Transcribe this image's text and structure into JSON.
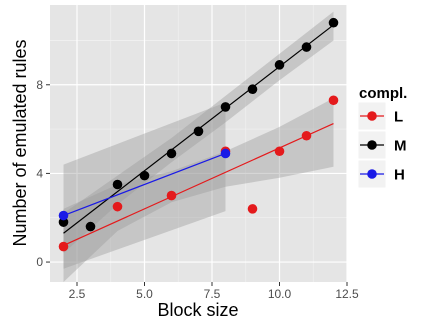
{
  "chart_data": {
    "type": "scatter",
    "xlabel": "Block size",
    "ylabel": "Number of emulated rules",
    "xlim": [
      1.5,
      12.5
    ],
    "ylim": [
      -0.9,
      11.6
    ],
    "x_ticks": [
      2.5,
      5.0,
      7.5,
      10.0,
      12.5
    ],
    "x_tick_labels": [
      "2.5",
      "5.0",
      "7.5",
      "10.0",
      "12.5"
    ],
    "y_ticks": [
      0,
      4,
      8
    ],
    "y_tick_labels": [
      "0",
      "4",
      "8"
    ],
    "grid": true,
    "legend": {
      "title": "compl.",
      "placement": "right"
    },
    "series": [
      {
        "name": "L",
        "color": "#e41a1c",
        "points": [
          {
            "x": 2,
            "y": 0.7
          },
          {
            "x": 4,
            "y": 2.5
          },
          {
            "x": 6,
            "y": 3.0
          },
          {
            "x": 8,
            "y": 5.0
          },
          {
            "x": 9,
            "y": 2.4
          },
          {
            "x": 10,
            "y": 5.0
          },
          {
            "x": 11,
            "y": 5.7
          },
          {
            "x": 12,
            "y": 7.3
          }
        ],
        "fit": {
          "x0": 2,
          "y0": 0.75,
          "x1": 12,
          "y1": 6.25
        },
        "band": [
          {
            "x": 2,
            "lo": -0.9,
            "hi": 2.4
          },
          {
            "x": 4,
            "lo": 1.4,
            "hi": 3.5
          },
          {
            "x": 6,
            "lo": 2.7,
            "hi": 4.1
          },
          {
            "x": 8,
            "lo": 3.4,
            "hi": 5.0
          },
          {
            "x": 10,
            "lo": 3.8,
            "hi": 6.1
          },
          {
            "x": 12,
            "lo": 4.3,
            "hi": 7.4
          }
        ]
      },
      {
        "name": "M",
        "color": "#000000",
        "points": [
          {
            "x": 2,
            "y": 1.8
          },
          {
            "x": 3,
            "y": 1.6
          },
          {
            "x": 4,
            "y": 3.5
          },
          {
            "x": 5,
            "y": 3.9
          },
          {
            "x": 6,
            "y": 4.9
          },
          {
            "x": 7,
            "y": 5.9
          },
          {
            "x": 8,
            "y": 7.0
          },
          {
            "x": 9,
            "y": 7.8
          },
          {
            "x": 10,
            "y": 8.9
          },
          {
            "x": 11,
            "y": 9.7
          },
          {
            "x": 12,
            "y": 10.8
          }
        ],
        "fit": {
          "x0": 2,
          "y0": 1.3,
          "x1": 12,
          "y1": 10.7
        },
        "band": [
          {
            "x": 2,
            "lo": 0.4,
            "hi": 2.2
          },
          {
            "x": 4,
            "lo": 2.6,
            "hi": 3.9
          },
          {
            "x": 6,
            "lo": 4.5,
            "hi": 5.6
          },
          {
            "x": 8,
            "lo": 6.3,
            "hi": 7.5
          },
          {
            "x": 10,
            "lo": 8.2,
            "hi": 9.4
          },
          {
            "x": 12,
            "lo": 10.0,
            "hi": 11.3
          }
        ]
      },
      {
        "name": "H",
        "color": "#1a1ae6",
        "points": [
          {
            "x": 2,
            "y": 2.1
          },
          {
            "x": 8,
            "y": 4.9
          }
        ],
        "fit": {
          "x0": 2,
          "y0": 2.1,
          "x1": 8,
          "y1": 4.9
        },
        "band": [
          {
            "x": 2,
            "lo": -0.3,
            "hi": 4.4
          },
          {
            "x": 8,
            "lo": 2.3,
            "hi": 7.2
          }
        ]
      }
    ]
  }
}
